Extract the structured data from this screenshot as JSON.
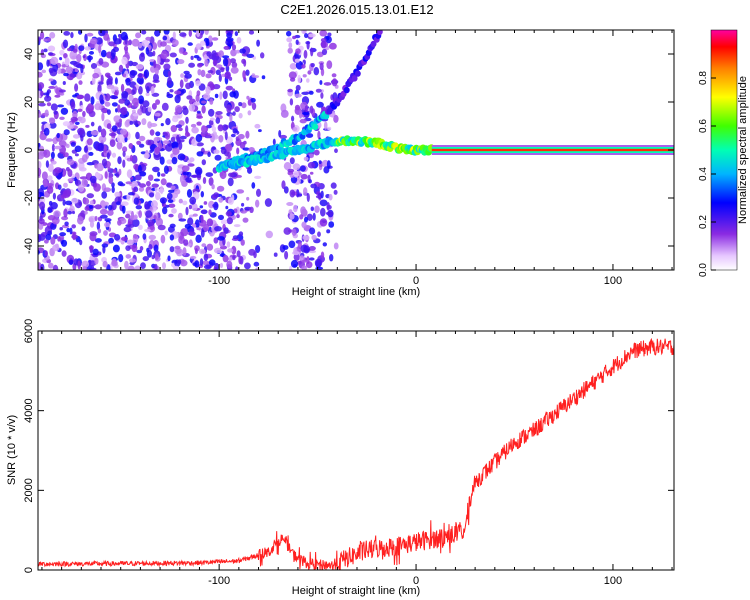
{
  "title": "C2E1.2026.015.13.01.E12",
  "chart_data": [
    {
      "type": "heatmap",
      "xlabel": "Height of straight line (km)",
      "ylabel": "Frequency (Hz)",
      "xlim": [
        -192,
        131
      ],
      "ylim": [
        -50,
        50
      ],
      "xticks": [
        -100,
        0,
        100
      ],
      "xtick_labels": [
        "-100",
        "0",
        "100"
      ],
      "yticks": [
        -40,
        -20,
        0,
        20,
        40
      ],
      "ytick_labels": [
        "-40",
        "-20",
        "0",
        "20",
        "40"
      ],
      "colorbar": {
        "label": "Normalized spectral amplitude",
        "range": [
          0,
          1
        ],
        "ticks": [
          0.0,
          0.2,
          0.4,
          0.6,
          0.8
        ],
        "tick_labels": [
          "0.0",
          "0.2",
          "0.4",
          "0.6",
          "0.8"
        ]
      },
      "features": {
        "noise_region_x": [
          -192,
          -40
        ],
        "stationary_line": {
          "x_start": 8,
          "x_end": 131,
          "frequency": 0
        },
        "upper_branch": {
          "x": [
            -100,
            -80,
            -60,
            -45,
            -30,
            -18
          ],
          "frequency": [
            -7,
            -2,
            5,
            15,
            32,
            50
          ]
        },
        "lower_branch": {
          "x": [
            -100,
            -80,
            -60,
            -45,
            -35,
            -20,
            -5,
            8
          ],
          "frequency": [
            -7,
            -4,
            0,
            3,
            4,
            3,
            0,
            0
          ]
        }
      }
    },
    {
      "type": "line",
      "xlabel": "Height of straight line (km)",
      "ylabel": "SNR (10 * v/v)",
      "xlim": [
        -192,
        131
      ],
      "ylim": [
        0,
        6000
      ],
      "xticks": [
        -100,
        0,
        100
      ],
      "xtick_labels": [
        "-100",
        "0",
        "100"
      ],
      "yticks": [
        0,
        2000,
        4000,
        6000
      ],
      "ytick_labels": [
        "0",
        "2000",
        "4000",
        "6000"
      ],
      "series": [
        {
          "name": "SNR",
          "color": "#ff2020",
          "x": [
            -192,
            -150,
            -110,
            -90,
            -75,
            -68,
            -62,
            -55,
            -42,
            -35,
            -25,
            -10,
            0,
            10,
            20,
            25,
            27,
            30,
            40,
            50,
            60,
            70,
            80,
            90,
            100,
            110,
            120,
            131
          ],
          "y": [
            150,
            160,
            180,
            230,
            450,
            800,
            380,
            150,
            120,
            300,
            500,
            600,
            700,
            800,
            900,
            1000,
            1700,
            2200,
            2700,
            3200,
            3500,
            3900,
            4300,
            4700,
            5100,
            5500,
            5600,
            5600
          ]
        }
      ]
    }
  ],
  "colors": {
    "line": "#ff2020",
    "noise": "#7b1fe0",
    "frame": "#000000"
  }
}
